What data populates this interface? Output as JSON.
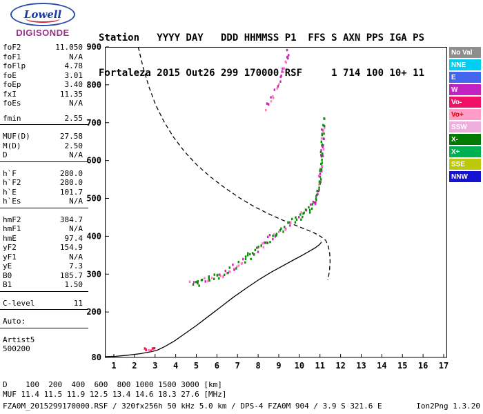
{
  "logo": {
    "line1": "Lowell",
    "line2": "DIGISONDE",
    "brand_colors": {
      "lowell_blue": "#1b3a9e",
      "digisonde_magenta": "#9b2d8e",
      "swoosh_red": "#cc2233"
    }
  },
  "header": {
    "line1": "Station   YYYY DAY   DDD HHMMSS P1  FFS S AXN PPS IGA PS",
    "line2": "Fortaleza 2015 Out26 299 170000 RSF     1 714 100 10+ 11"
  },
  "parameters": {
    "groups": [
      {
        "gap_above": false,
        "rule_after": false,
        "rows": [
          [
            "foF2",
            "11.050"
          ],
          [
            "foF1",
            "N/A"
          ],
          [
            "foFlp",
            "4.78"
          ],
          [
            "foE",
            "3.01"
          ],
          [
            "foEp",
            "3.40"
          ],
          [
            "fxI",
            "11.35"
          ],
          [
            "foEs",
            "N/A"
          ]
        ]
      },
      {
        "gap_above": true,
        "rule_after": true,
        "rows": [
          [
            "fmin",
            "2.55"
          ]
        ]
      },
      {
        "gap_above": true,
        "rule_after": true,
        "rows": [
          [
            "MUF(D)",
            "27.58"
          ],
          [
            "M(D)",
            "2.50"
          ],
          [
            "D",
            "N/A"
          ]
        ]
      },
      {
        "gap_above": true,
        "rule_after": true,
        "rows": [
          [
            "h`F",
            "280.0"
          ],
          [
            "h`F2",
            "280.0"
          ],
          [
            "h`E",
            "101.7"
          ],
          [
            "h`Es",
            "N/A"
          ]
        ]
      },
      {
        "gap_above": true,
        "rule_after": true,
        "rows": [
          [
            "hmF2",
            "384.7"
          ],
          [
            "hmF1",
            "N/A"
          ],
          [
            "hmE",
            "97.4"
          ],
          [
            "yF2",
            "154.9"
          ],
          [
            "yF1",
            "N/A"
          ],
          [
            "yE",
            "7.3"
          ],
          [
            "B0",
            "185.7"
          ],
          [
            "B1",
            "1.50"
          ]
        ]
      },
      {
        "gap_above": true,
        "rule_after": true,
        "rows": [
          [
            "C-level",
            "11"
          ]
        ]
      },
      {
        "gap_above": true,
        "rule_after": true,
        "rows": [
          [
            "Auto:",
            ""
          ]
        ]
      },
      {
        "gap_above": true,
        "rule_after": false,
        "rows": [
          [
            "Artist5",
            ""
          ],
          [
            "500200",
            ""
          ]
        ]
      }
    ]
  },
  "legend": {
    "items": [
      {
        "label": "No Val",
        "bg": "#8e8e8e",
        "fg": "#ffffff"
      },
      {
        "label": "NNE",
        "bg": "#00cdf0",
        "fg": "#ffffff"
      },
      {
        "label": "E",
        "bg": "#4466ee",
        "fg": "#ffffff"
      },
      {
        "label": "W",
        "bg": "#c322c3",
        "fg": "#ffffff"
      },
      {
        "label": "Vo-",
        "bg": "#ee1166",
        "fg": "#ffffff"
      },
      {
        "label": "Vo+",
        "bg": "#ff9cc8",
        "fg": "#dd0000"
      },
      {
        "label": "SSW",
        "bg": "#edaede",
        "fg": "#ffffff"
      },
      {
        "label": "X-",
        "bg": "#007a00",
        "fg": "#ffffff"
      },
      {
        "label": "X+",
        "bg": "#00b050",
        "fg": "#ffffff"
      },
      {
        "label": "SSE",
        "bg": "#bcc90a",
        "fg": "#ffffff"
      },
      {
        "label": "NNW",
        "bg": "#1512d2",
        "fg": "#ffffff"
      }
    ]
  },
  "scaled_table": {
    "rows": [
      {
        "label": "D",
        "values": [
          "100",
          "200",
          "400",
          "600",
          "800",
          "1000",
          "1500",
          "3000"
        ],
        "unit": "[km]"
      },
      {
        "label": "MUF",
        "values": [
          "11.4",
          "11.5",
          "11.9",
          "12.5",
          "13.4",
          "14.6",
          "18.3",
          "27.6"
        ],
        "unit": "[MHz]"
      }
    ]
  },
  "footer": {
    "left": "FZA0M_2015299170000.RSF / 320fx256h 50 kHz 5.0 km / DPS-4 FZA0M 904 / 3.9 S 321.6 E",
    "right": "Ion2Png 1.3.20"
  },
  "chart_data": {
    "type": "scatter",
    "title": "",
    "x_axis": {
      "name": "frequency_MHz",
      "ticks": [
        1,
        2,
        3,
        4,
        5,
        6,
        7,
        8,
        9,
        10,
        11,
        12,
        13,
        14,
        15,
        16,
        17
      ],
      "range": [
        0.56,
        17.17
      ]
    },
    "y_axis": {
      "name": "virtual_height_km",
      "ticks": [
        900,
        800,
        700,
        600,
        500,
        400,
        300,
        200,
        80
      ],
      "range": [
        80,
        900
      ]
    },
    "series": [
      {
        "name": "true-height-profile",
        "kind": "line",
        "dash": false,
        "color": "#000000",
        "points": [
          [
            0.57,
            82
          ],
          [
            1.1,
            83
          ],
          [
            1.7,
            86
          ],
          [
            2.3,
            90
          ],
          [
            2.8,
            95
          ],
          [
            3.1,
            99
          ],
          [
            3.45,
            108
          ],
          [
            3.9,
            122
          ],
          [
            4.4,
            141
          ],
          [
            5.0,
            164
          ],
          [
            5.6,
            189
          ],
          [
            6.2,
            214
          ],
          [
            6.8,
            239
          ],
          [
            7.4,
            262
          ],
          [
            8.0,
            284
          ],
          [
            8.6,
            304
          ],
          [
            9.2,
            322
          ],
          [
            9.7,
            337
          ],
          [
            10.15,
            350
          ],
          [
            10.5,
            361
          ],
          [
            10.78,
            370
          ],
          [
            10.95,
            377
          ],
          [
            11.04,
            382
          ],
          [
            11.07,
            385
          ]
        ]
      },
      {
        "name": "muf-transmission-curve",
        "kind": "line",
        "dash": true,
        "color": "#000000",
        "points": [
          [
            2.18,
            900
          ],
          [
            2.42,
            846
          ],
          [
            2.7,
            795
          ],
          [
            3.02,
            748
          ],
          [
            3.42,
            704
          ],
          [
            3.88,
            663
          ],
          [
            4.42,
            624
          ],
          [
            5.02,
            589
          ],
          [
            5.68,
            557
          ],
          [
            6.38,
            528
          ],
          [
            7.08,
            502
          ],
          [
            7.78,
            479
          ],
          [
            8.48,
            460
          ],
          [
            9.12,
            444
          ],
          [
            9.72,
            431
          ],
          [
            10.22,
            420
          ],
          [
            10.68,
            410
          ],
          [
            11.02,
            400
          ],
          [
            11.28,
            389
          ],
          [
            11.4,
            374
          ],
          [
            11.47,
            355
          ],
          [
            11.49,
            333
          ],
          [
            11.46,
            308
          ],
          [
            11.38,
            284
          ]
        ]
      },
      {
        "name": "f-trace-echoes",
        "kind": "dots",
        "seed": 7,
        "spacing": 2,
        "jitter_f": 0.07,
        "jitter_h": 9,
        "colors": [
          {
            "color": "#009000",
            "weight": 0.55
          },
          {
            "color": "#cc22bb",
            "weight": 0.28
          },
          {
            "color": "#ff77c0",
            "weight": 0.17
          }
        ],
        "points": [
          [
            4.75,
            272
          ],
          [
            5.1,
            277
          ],
          [
            5.5,
            284
          ],
          [
            5.9,
            292
          ],
          [
            6.3,
            302
          ],
          [
            6.7,
            314
          ],
          [
            7.1,
            328
          ],
          [
            7.5,
            344
          ],
          [
            7.9,
            362
          ],
          [
            8.2,
            377
          ],
          [
            8.5,
            391
          ],
          [
            8.8,
            404
          ],
          [
            9.1,
            416
          ],
          [
            9.4,
            427
          ],
          [
            9.7,
            438
          ],
          [
            10.0,
            449
          ],
          [
            10.25,
            460
          ],
          [
            10.5,
            473
          ],
          [
            10.7,
            488
          ],
          [
            10.85,
            506
          ],
          [
            10.95,
            528
          ],
          [
            11.02,
            555
          ],
          [
            11.07,
            585
          ],
          [
            11.1,
            615
          ],
          [
            11.13,
            648
          ],
          [
            11.16,
            680
          ],
          [
            11.19,
            710
          ]
        ]
      },
      {
        "name": "e-trace-echoes",
        "kind": "dots",
        "seed": 11,
        "spacing": 2.2,
        "jitter_f": 0.04,
        "jitter_h": 4,
        "colors": [
          {
            "color": "#ee1144",
            "weight": 0.7
          },
          {
            "color": "#ff77c0",
            "weight": 0.3
          }
        ],
        "points": [
          [
            2.5,
            104
          ],
          [
            2.6,
            101
          ],
          [
            2.7,
            99
          ],
          [
            2.8,
            99
          ],
          [
            2.9,
            101
          ],
          [
            3.0,
            105
          ],
          [
            3.06,
            110
          ]
        ]
      },
      {
        "name": "second-hop-echoes",
        "kind": "dots",
        "seed": 5,
        "spacing": 3.4,
        "jitter_f": 0.06,
        "jitter_h": 9,
        "colors": [
          {
            "color": "#ff77c0",
            "weight": 0.45
          },
          {
            "color": "#cc22bb",
            "weight": 0.45
          },
          {
            "color": "#009000",
            "weight": 0.1
          }
        ],
        "points": [
          [
            8.35,
            738
          ],
          [
            8.6,
            758
          ],
          [
            8.82,
            780
          ],
          [
            9.0,
            803
          ],
          [
            9.15,
            826
          ],
          [
            9.28,
            848
          ],
          [
            9.38,
            870
          ],
          [
            9.47,
            894
          ]
        ]
      }
    ]
  }
}
